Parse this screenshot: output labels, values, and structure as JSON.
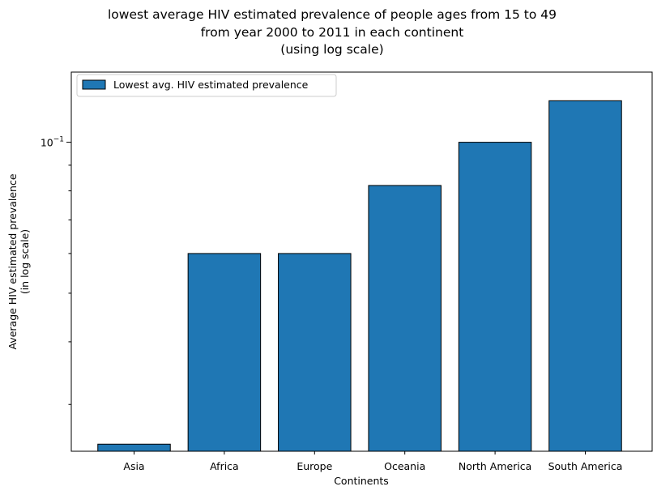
{
  "chart_data": {
    "type": "bar",
    "title_lines": [
      "lowest average HIV estimated prevalence of people ages from 15 to 49",
      "from year 2000 to 2011 in each continent",
      "(using log scale)"
    ],
    "xlabel": "Continents",
    "ylabel_lines": [
      "Average HIV estimated prevalence",
      "(in log scale)"
    ],
    "yscale": "log",
    "ylim": [
      0.0242,
      0.138
    ],
    "y_major_ticks": [
      {
        "value": 0.1,
        "base": "10",
        "exp": "−1"
      }
    ],
    "y_minor_ticks": [
      0.03,
      0.04,
      0.05,
      0.06,
      0.07,
      0.08,
      0.09
    ],
    "categories": [
      "Asia",
      "Africa",
      "Europe",
      "Oceania",
      "North America",
      "South America"
    ],
    "series": [
      {
        "name": "Lowest avg. HIV estimated prevalence",
        "values": [
          0.025,
          0.06,
          0.06,
          0.082,
          0.1,
          0.121
        ]
      }
    ],
    "bar_color": "#1f77b4",
    "edge_color": "#000000",
    "legend_position": "upper left",
    "grid": false
  }
}
